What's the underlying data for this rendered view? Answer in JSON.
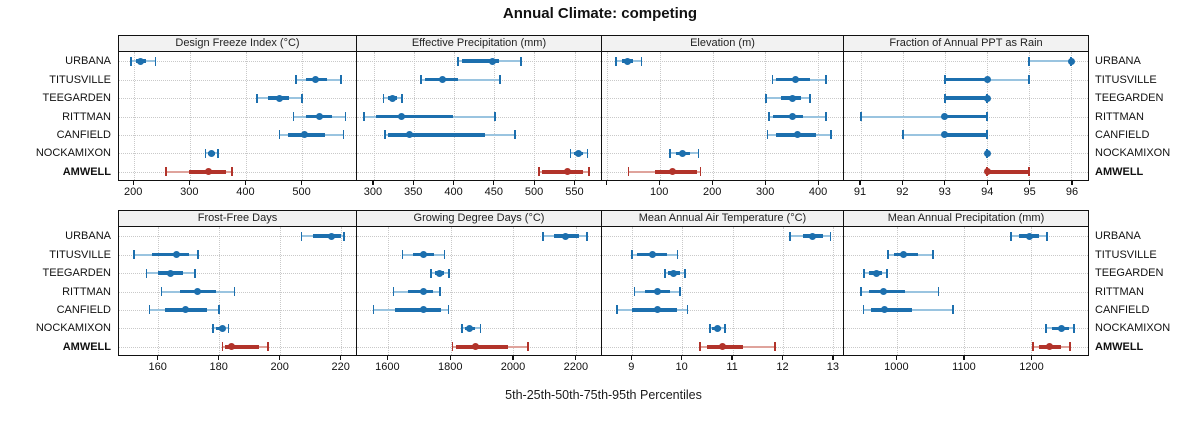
{
  "title": "Annual Climate: competing",
  "caption": "5th-25th-50th-75th-95th Percentiles",
  "locations": [
    "URBANA",
    "TITUSVILLE",
    "TEEGARDEN",
    "RITTMAN",
    "CANFIELD",
    "NOCKAMIXON",
    "AMWELL"
  ],
  "highlight_location": "AMWELL",
  "percentile_labels": [
    "5th",
    "25th",
    "50th",
    "75th",
    "95th"
  ],
  "colors": {
    "series_main": "#1c6fae",
    "series_light": "#9ac4e0",
    "highlight_main": "#b2332a",
    "highlight_light": "#dfa39c",
    "header_bg": "#f2f2f2",
    "grid": "#c9c9c9",
    "frame": "#111111"
  },
  "chart_data": [
    {
      "type": "scatter",
      "title": "Design Freeze Index (°C)",
      "grid_row": 0,
      "grid_col": 0,
      "axis_range": [
        173,
        597
      ],
      "ticks": [
        200,
        300,
        400,
        500
      ],
      "series": [
        {
          "name": "URBANA",
          "percentiles": [
            195,
            203,
            211,
            222,
            238
          ]
        },
        {
          "name": "TITUSVILLE",
          "percentiles": [
            490,
            507,
            525,
            545,
            570
          ]
        },
        {
          "name": "TEEGARDEN",
          "percentiles": [
            420,
            440,
            460,
            478,
            500
          ]
        },
        {
          "name": "RITTMAN",
          "percentiles": [
            485,
            507,
            532,
            554,
            578
          ]
        },
        {
          "name": "CANFIELD",
          "percentiles": [
            460,
            475,
            504,
            542,
            575
          ]
        },
        {
          "name": "NOCKAMIXON",
          "percentiles": [
            328,
            333,
            338,
            344,
            350
          ]
        },
        {
          "name": "AMWELL",
          "percentiles": [
            257,
            299,
            333,
            365,
            375
          ]
        }
      ]
    },
    {
      "type": "scatter",
      "title": "Effective Precipitation (mm)",
      "grid_row": 0,
      "grid_col": 1,
      "axis_range": [
        279,
        583
      ],
      "ticks": [
        300,
        350,
        400,
        450,
        500,
        550
      ],
      "series": [
        {
          "name": "URBANA",
          "percentiles": [
            405,
            410,
            448,
            456,
            483
          ]
        },
        {
          "name": "TITUSVILLE",
          "percentiles": [
            359,
            364,
            386,
            405,
            457
          ]
        },
        {
          "name": "TEEGARDEN",
          "percentiles": [
            312,
            317,
            323,
            329,
            335
          ]
        },
        {
          "name": "RITTMAN",
          "percentiles": [
            288,
            303,
            335,
            398,
            451
          ]
        },
        {
          "name": "CANFIELD",
          "percentiles": [
            314,
            318,
            345,
            438,
            476
          ]
        },
        {
          "name": "NOCKAMIXON",
          "percentiles": [
            545,
            549,
            555,
            560,
            566
          ]
        },
        {
          "name": "AMWELL",
          "percentiles": [
            506,
            510,
            541,
            561,
            568
          ]
        }
      ]
    },
    {
      "type": "scatter",
      "title": "Elevation (m)",
      "grid_row": 0,
      "grid_col": 2,
      "axis_range": [
        -10,
        447
      ],
      "ticks": [
        100,
        200,
        300,
        400
      ],
      "unlabeled_ticks": [
        0
      ],
      "series": [
        {
          "name": "URBANA",
          "percentiles": [
            17,
            28,
            38,
            48,
            65
          ]
        },
        {
          "name": "TITUSVILLE",
          "percentiles": [
            313,
            320,
            357,
            384,
            415
          ]
        },
        {
          "name": "TEEGARDEN",
          "percentiles": [
            301,
            330,
            352,
            368,
            384
          ]
        },
        {
          "name": "RITTMAN",
          "percentiles": [
            307,
            315,
            352,
            372,
            415
          ]
        },
        {
          "name": "CANFIELD",
          "percentiles": [
            304,
            320,
            360,
            396,
            424
          ]
        },
        {
          "name": "NOCKAMIXON",
          "percentiles": [
            119,
            131,
            143,
            157,
            173
          ]
        },
        {
          "name": "AMWELL",
          "percentiles": [
            40,
            90,
            124,
            170,
            177
          ]
        }
      ]
    },
    {
      "type": "scatter",
      "title": "Fraction of Annual PPT as Rain",
      "grid_row": 0,
      "grid_col": 3,
      "axis_range": [
        90.6,
        96.4
      ],
      "ticks": [
        91,
        92,
        93,
        94,
        95,
        96
      ],
      "series": [
        {
          "name": "URBANA",
          "percentiles": [
            95,
            96,
            96,
            96,
            96
          ]
        },
        {
          "name": "TITUSVILLE",
          "percentiles": [
            93,
            93,
            94,
            94,
            95
          ]
        },
        {
          "name": "TEEGARDEN",
          "percentiles": [
            93,
            93,
            94,
            94,
            94
          ]
        },
        {
          "name": "RITTMAN",
          "percentiles": [
            91,
            93,
            93,
            94,
            94
          ]
        },
        {
          "name": "CANFIELD",
          "percentiles": [
            92,
            93,
            93,
            94,
            94
          ]
        },
        {
          "name": "NOCKAMIXON",
          "percentiles": [
            94,
            94,
            94,
            94,
            94
          ]
        },
        {
          "name": "AMWELL",
          "percentiles": [
            94,
            94,
            94,
            95,
            95
          ]
        }
      ]
    },
    {
      "type": "scatter",
      "title": "Frost-Free Days",
      "grid_row": 1,
      "grid_col": 0,
      "axis_range": [
        147,
        225
      ],
      "ticks": [
        160,
        180,
        200,
        220
      ],
      "series": [
        {
          "name": "URBANA",
          "percentiles": [
            207,
            211,
            217,
            220,
            221
          ]
        },
        {
          "name": "TITUSVILLE",
          "percentiles": [
            152,
            158,
            166,
            170,
            173
          ]
        },
        {
          "name": "TEEGARDEN",
          "percentiles": [
            156,
            160,
            164,
            168,
            172
          ]
        },
        {
          "name": "RITTMAN",
          "percentiles": [
            161,
            167,
            173,
            179,
            185
          ]
        },
        {
          "name": "CANFIELD",
          "percentiles": [
            157,
            162,
            169,
            176,
            180
          ]
        },
        {
          "name": "NOCKAMIXON",
          "percentiles": [
            178,
            179,
            181,
            182,
            183
          ]
        },
        {
          "name": "AMWELL",
          "percentiles": [
            181,
            182,
            184,
            193,
            196
          ]
        }
      ]
    },
    {
      "type": "scatter",
      "title": "Growing Degree Days (°C)",
      "grid_row": 1,
      "grid_col": 1,
      "axis_range": [
        1500,
        2280
      ],
      "ticks": [
        1600,
        1800,
        2000,
        2200
      ],
      "series": [
        {
          "name": "URBANA",
          "percentiles": [
            2095,
            2130,
            2165,
            2210,
            2235
          ]
        },
        {
          "name": "TITUSVILLE",
          "percentiles": [
            1645,
            1680,
            1712,
            1745,
            1780
          ]
        },
        {
          "name": "TEEGARDEN",
          "percentiles": [
            1737,
            1750,
            1763,
            1779,
            1795
          ]
        },
        {
          "name": "RITTMAN",
          "percentiles": [
            1617,
            1662,
            1714,
            1743,
            1766
          ]
        },
        {
          "name": "CANFIELD",
          "percentiles": [
            1553,
            1620,
            1712,
            1770,
            1792
          ]
        },
        {
          "name": "NOCKAMIXON",
          "percentiles": [
            1836,
            1845,
            1860,
            1878,
            1895
          ]
        },
        {
          "name": "AMWELL",
          "percentiles": [
            1805,
            1815,
            1878,
            1982,
            2047
          ]
        }
      ]
    },
    {
      "type": "scatter",
      "title": "Mean Annual Air Temperature (°C)",
      "grid_row": 1,
      "grid_col": 2,
      "axis_range": [
        8.4,
        13.2
      ],
      "ticks": [
        9,
        10,
        11,
        12,
        13
      ],
      "series": [
        {
          "name": "URBANA",
          "percentiles": [
            12.15,
            12.4,
            12.6,
            12.8,
            12.95
          ]
        },
        {
          "name": "TITUSVILLE",
          "percentiles": [
            9.0,
            9.1,
            9.4,
            9.7,
            9.9
          ]
        },
        {
          "name": "TEEGARDEN",
          "percentiles": [
            9.65,
            9.72,
            9.82,
            9.95,
            10.05
          ]
        },
        {
          "name": "RITTMAN",
          "percentiles": [
            9.05,
            9.25,
            9.5,
            9.75,
            9.95
          ]
        },
        {
          "name": "CANFIELD",
          "percentiles": [
            8.7,
            9.0,
            9.5,
            9.9,
            10.1
          ]
        },
        {
          "name": "NOCKAMIXON",
          "percentiles": [
            10.55,
            10.6,
            10.7,
            10.78,
            10.85
          ]
        },
        {
          "name": "AMWELL",
          "percentiles": [
            10.35,
            10.5,
            10.8,
            11.2,
            11.85
          ]
        }
      ]
    },
    {
      "type": "scatter",
      "title": "Mean Annual Precipitation (mm)",
      "grid_row": 1,
      "grid_col": 3,
      "axis_range": [
        921,
        1285
      ],
      "ticks": [
        1000,
        1100,
        1200
      ],
      "series": [
        {
          "name": "URBANA",
          "percentiles": [
            1170,
            1182,
            1197,
            1212,
            1224
          ]
        },
        {
          "name": "TITUSVILLE",
          "percentiles": [
            987,
            996,
            1010,
            1032,
            1054
          ]
        },
        {
          "name": "TEEGARDEN",
          "percentiles": [
            951,
            958,
            970,
            978,
            985
          ]
        },
        {
          "name": "RITTMAN",
          "percentiles": [
            946,
            958,
            980,
            1012,
            1062
          ]
        },
        {
          "name": "CANFIELD",
          "percentiles": [
            950,
            962,
            981,
            1022,
            1084
          ]
        },
        {
          "name": "NOCKAMIXON",
          "percentiles": [
            1222,
            1232,
            1246,
            1256,
            1264
          ]
        },
        {
          "name": "AMWELL",
          "percentiles": [
            1203,
            1212,
            1227,
            1244,
            1258
          ]
        }
      ]
    }
  ]
}
